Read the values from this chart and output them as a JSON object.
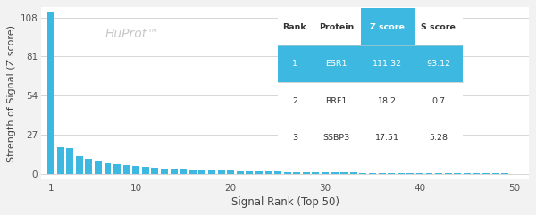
{
  "title": "HuProt™",
  "xlabel": "Signal Rank (Top 50)",
  "ylabel": "Strength of Signal (Z score)",
  "yticks": [
    0,
    27,
    54,
    81,
    108
  ],
  "xticks": [
    1,
    10,
    20,
    30,
    40,
    50
  ],
  "xlim": [
    0.0,
    51.5
  ],
  "ylim": [
    -4,
    115
  ],
  "bar_color": "#3db8e0",
  "background_color": "#f2f2f2",
  "plot_bg_color": "#ffffff",
  "grid_color": "#d0d0d0",
  "table_header_bg": "#3db8e0",
  "table_row1_bg": "#3db8e0",
  "table_header_text": "#ffffff",
  "table_row1_text": "#ffffff",
  "table_text_dark": "#333333",
  "table_text_light": "#666666",
  "table_cols": [
    "Rank",
    "Protein",
    "Z score",
    "S score"
  ],
  "table_data": [
    [
      "1",
      "ESR1",
      "111.32",
      "93.12"
    ],
    [
      "2",
      "BRF1",
      "18.2",
      "0.7"
    ],
    [
      "3",
      "SSBP3",
      "17.51",
      "5.28"
    ]
  ],
  "bar_values": [
    111.32,
    18.2,
    17.51,
    12.5,
    10.2,
    8.8,
    7.5,
    6.8,
    5.9,
    5.2,
    4.7,
    4.3,
    3.9,
    3.6,
    3.3,
    3.0,
    2.8,
    2.6,
    2.4,
    2.2,
    2.0,
    1.85,
    1.7,
    1.6,
    1.5,
    1.4,
    1.3,
    1.2,
    1.1,
    1.0,
    0.95,
    0.9,
    0.85,
    0.8,
    0.75,
    0.7,
    0.65,
    0.6,
    0.55,
    0.5,
    0.47,
    0.44,
    0.41,
    0.38,
    0.35,
    0.32,
    0.29,
    0.26,
    0.23,
    0.2
  ]
}
